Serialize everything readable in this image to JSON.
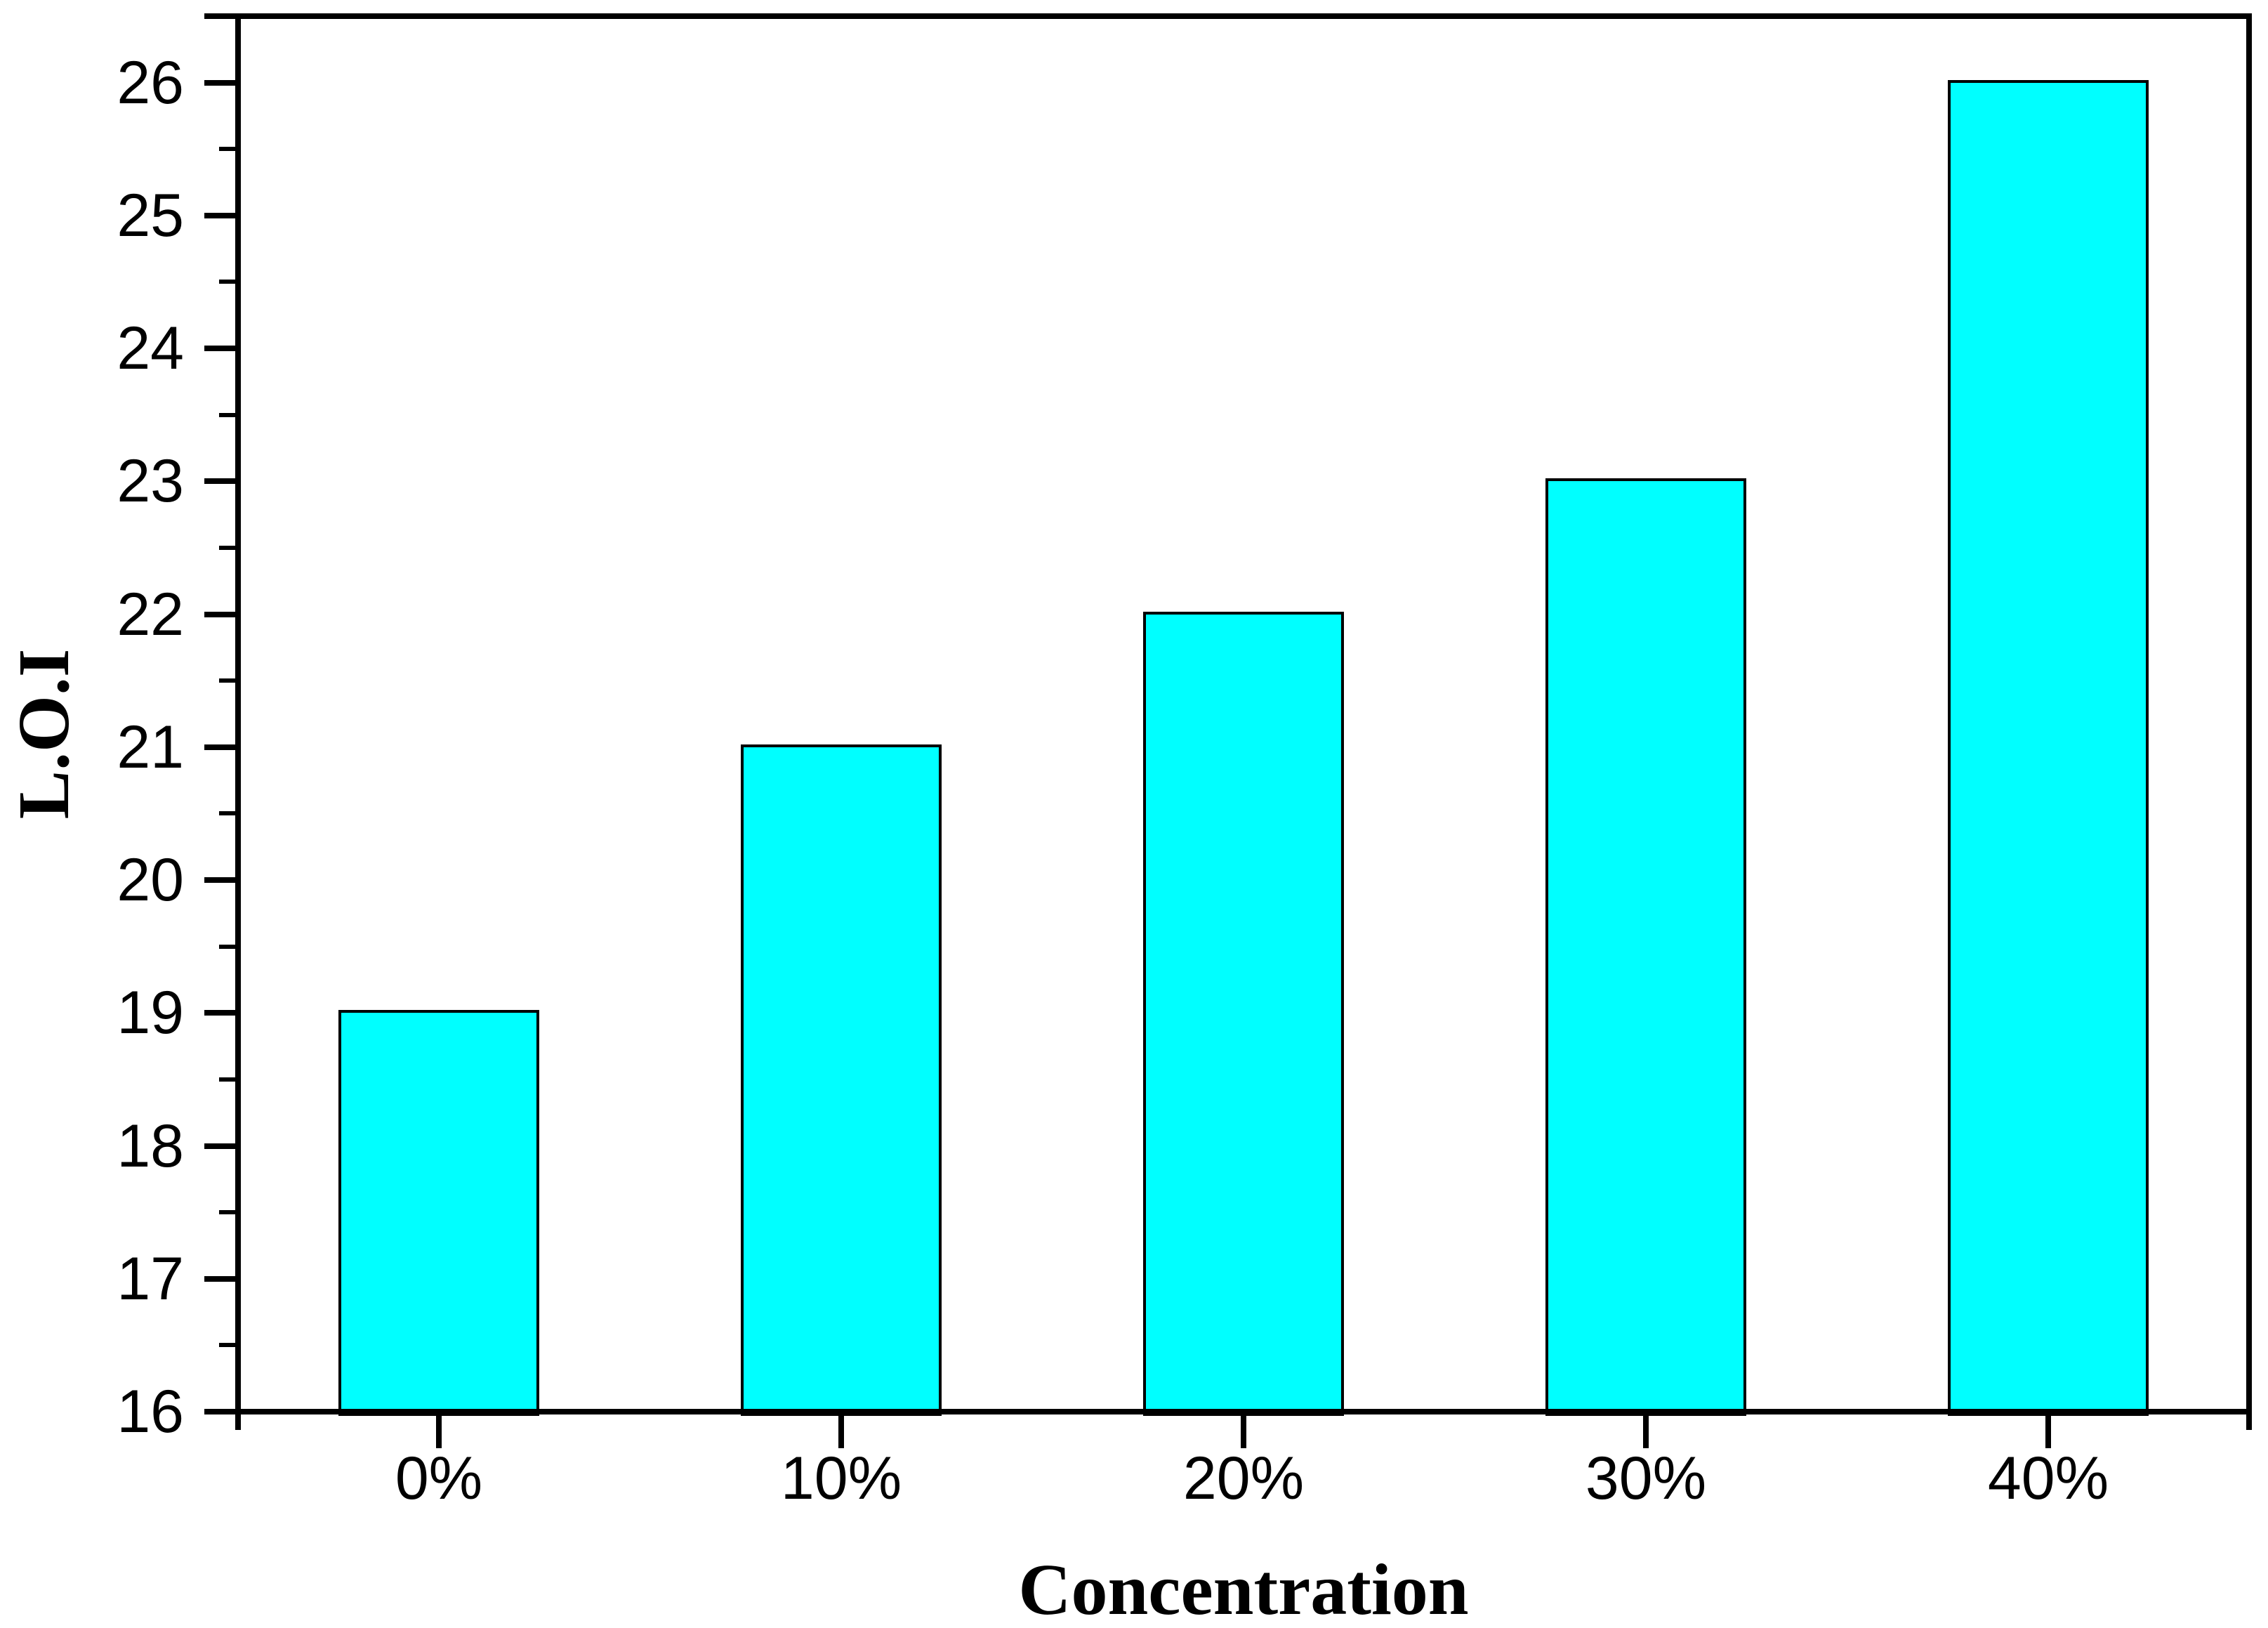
{
  "chart_data": {
    "type": "bar",
    "categories": [
      "0%",
      "10%",
      "20%",
      "30%",
      "40%"
    ],
    "values": [
      19,
      21,
      22,
      23,
      26
    ],
    "title": "",
    "xlabel": "Concentration",
    "ylabel": "L.O.I",
    "ylim": [
      16,
      26.5
    ],
    "y_major_ticks": [
      16,
      17,
      18,
      19,
      20,
      21,
      22,
      23,
      24,
      25,
      26
    ],
    "y_minor_tick_step": 0.5,
    "grid": false,
    "legend_position": "none",
    "bar_fill_color": "#00FFFF",
    "bar_border_color": "#000000",
    "axis_color": "#000000",
    "background_color": "#FFFFFF"
  }
}
